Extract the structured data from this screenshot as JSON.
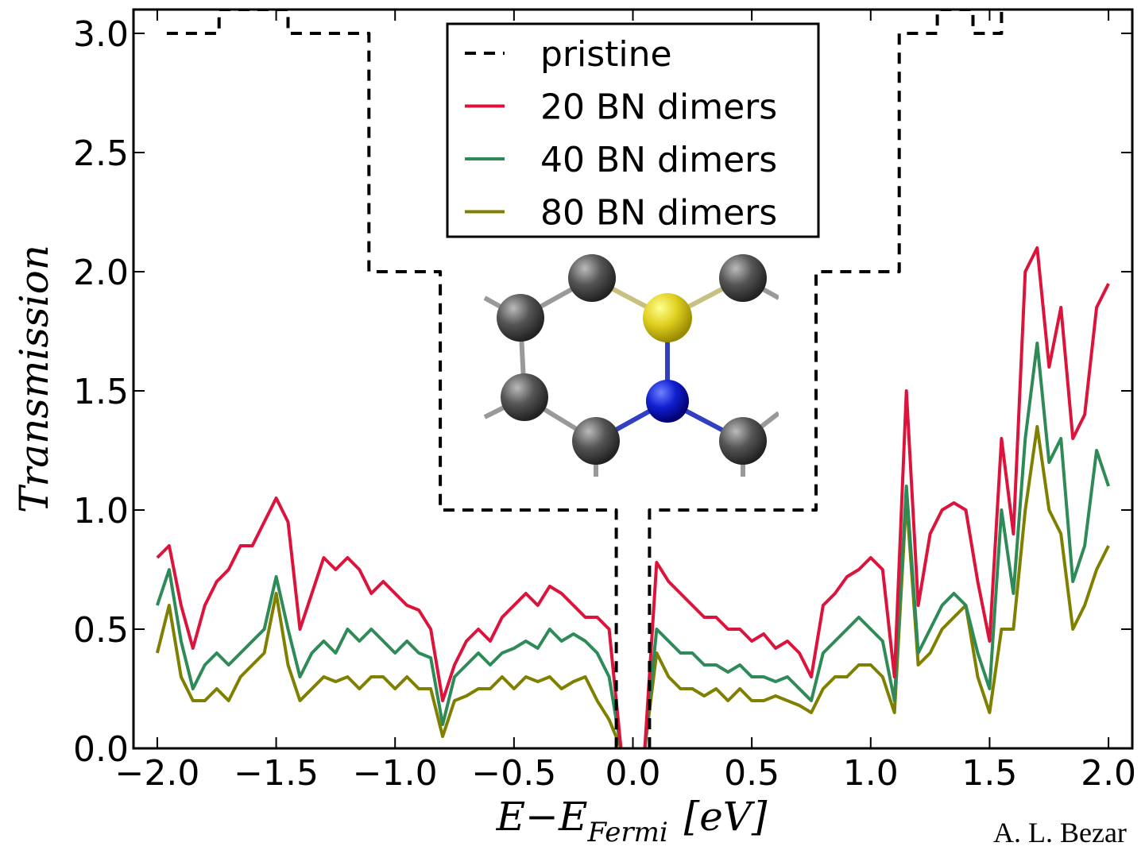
{
  "chart_data": {
    "type": "line",
    "ylabel": "Transmission",
    "xlabel": {
      "main": "E−E",
      "sub": "Fermi",
      "unit": "[eV]"
    },
    "credit": "A. L. Bezar",
    "xlim": [
      -2.1,
      2.1
    ],
    "ylim": [
      0,
      3.1
    ],
    "xticks": [
      {
        "value": -2.0,
        "label": "−2.0"
      },
      {
        "value": -1.5,
        "label": "−1.5"
      },
      {
        "value": -1.0,
        "label": "−1.0"
      },
      {
        "value": -0.5,
        "label": "−0.5"
      },
      {
        "value": 0,
        "label": "0.0"
      },
      0.5,
      {
        "value": 1.0,
        "label": "1.0"
      },
      1.5,
      {
        "value": 2.0,
        "label": "2.0"
      }
    ],
    "yticks": [
      {
        "value": 0,
        "label": "0.0"
      },
      0.5,
      {
        "value": 1.0,
        "label": "1.0"
      },
      1.5,
      {
        "value": 2.0,
        "label": "2.0"
      },
      2.5,
      {
        "value": 3.0,
        "label": "3.0"
      }
    ],
    "x": [
      -2.0,
      -1.95,
      -1.9,
      -1.85,
      -1.8,
      -1.75,
      -1.7,
      -1.65,
      -1.6,
      -1.55,
      -1.5,
      -1.45,
      -1.4,
      -1.35,
      -1.3,
      -1.25,
      -1.2,
      -1.15,
      -1.1,
      -1.05,
      -1.0,
      -0.95,
      -0.9,
      -0.85,
      -0.8,
      -0.75,
      -0.7,
      -0.65,
      -0.6,
      -0.55,
      -0.5,
      -0.45,
      -0.4,
      -0.35,
      -0.3,
      -0.25,
      -0.2,
      -0.15,
      -0.1,
      -0.05,
      0,
      0.05,
      0.1,
      0.15,
      0.2,
      0.25,
      0.3,
      0.35,
      0.4,
      0.45,
      0.5,
      0.55,
      0.6,
      0.65,
      0.7,
      0.75,
      0.8,
      0.85,
      0.9,
      0.95,
      1.0,
      1.05,
      1.1,
      1.15,
      1.2,
      1.25,
      1.3,
      1.35,
      1.4,
      1.45,
      1.5,
      1.55,
      1.6,
      1.65,
      1.7,
      1.75,
      1.8,
      1.85,
      1.9,
      1.95,
      2.0
    ],
    "series": [
      {
        "name": "pristine",
        "color": "#000000",
        "linestyle": "dashed",
        "x": [
          -1.96,
          -1.74,
          -1.74,
          -1.45,
          -1.45,
          -1.11,
          -1.11,
          -0.81,
          -0.81,
          -0.07,
          -0.07,
          0,
          0.07,
          0.07,
          0.77,
          0.77,
          1.12,
          1.12,
          1.28,
          1.28,
          1.43,
          1.43,
          1.55,
          1.55
        ],
        "values": [
          3.0,
          3.0,
          3.1,
          3.1,
          3.0,
          3.0,
          2.0,
          2.0,
          1.0,
          1.0,
          0.0,
          null,
          0.0,
          1.0,
          1.0,
          2.0,
          2.0,
          3.0,
          3.0,
          3.1,
          3.1,
          3.0,
          3.0,
          3.1
        ]
      },
      {
        "name": "20 BN dimers",
        "color": "#dc143c",
        "linestyle": "solid",
        "values": [
          0.8,
          0.85,
          0.6,
          0.42,
          0.6,
          0.7,
          0.75,
          0.85,
          0.85,
          0.95,
          1.05,
          0.95,
          0.5,
          0.65,
          0.8,
          0.75,
          0.8,
          0.75,
          0.65,
          0.7,
          0.65,
          0.6,
          0.58,
          0.5,
          0.2,
          0.35,
          0.45,
          0.5,
          0.45,
          0.55,
          0.6,
          0.65,
          0.6,
          0.68,
          0.65,
          0.6,
          0.55,
          0.55,
          0.5,
          0.0,
          null,
          0.0,
          0.78,
          0.7,
          0.65,
          0.6,
          0.55,
          0.55,
          0.5,
          0.5,
          0.45,
          0.48,
          0.42,
          0.45,
          0.4,
          0.3,
          0.6,
          0.65,
          0.72,
          0.75,
          0.8,
          0.75,
          0.3,
          1.5,
          0.6,
          0.9,
          1.0,
          1.03,
          1.0,
          0.7,
          0.45,
          1.3,
          0.9,
          2.0,
          2.1,
          1.6,
          1.85,
          1.3,
          1.4,
          1.85,
          1.95
        ]
      },
      {
        "name": "40 BN dimers",
        "color": "#2e8b57",
        "linestyle": "solid",
        "values": [
          0.6,
          0.75,
          0.45,
          0.25,
          0.35,
          0.4,
          0.35,
          0.4,
          0.45,
          0.5,
          0.72,
          0.5,
          0.3,
          0.4,
          0.45,
          0.4,
          0.5,
          0.45,
          0.5,
          0.45,
          0.4,
          0.45,
          0.4,
          0.38,
          0.1,
          0.3,
          0.35,
          0.4,
          0.35,
          0.4,
          0.42,
          0.45,
          0.42,
          0.5,
          0.45,
          0.48,
          0.45,
          0.4,
          0.3,
          0.0,
          null,
          0.0,
          0.5,
          0.45,
          0.4,
          0.4,
          0.35,
          0.35,
          0.32,
          0.35,
          0.3,
          0.3,
          0.28,
          0.3,
          0.25,
          0.2,
          0.4,
          0.45,
          0.5,
          0.55,
          0.5,
          0.45,
          0.2,
          1.1,
          0.4,
          0.5,
          0.6,
          0.65,
          0.6,
          0.4,
          0.25,
          1.0,
          0.65,
          1.3,
          1.7,
          1.2,
          1.3,
          0.7,
          0.85,
          1.25,
          1.1
        ]
      },
      {
        "name": "80 BN dimers",
        "color": "#808000",
        "linestyle": "solid",
        "values": [
          0.4,
          0.6,
          0.3,
          0.2,
          0.2,
          0.25,
          0.2,
          0.3,
          0.35,
          0.4,
          0.65,
          0.35,
          0.2,
          0.25,
          0.3,
          0.28,
          0.3,
          0.25,
          0.3,
          0.3,
          0.25,
          0.3,
          0.25,
          0.25,
          0.05,
          0.2,
          0.22,
          0.25,
          0.25,
          0.3,
          0.25,
          0.3,
          0.28,
          0.3,
          0.25,
          0.28,
          0.3,
          0.2,
          0.12,
          0.0,
          null,
          0.0,
          0.4,
          0.3,
          0.25,
          0.25,
          0.22,
          0.25,
          0.2,
          0.25,
          0.2,
          0.2,
          0.22,
          0.2,
          0.18,
          0.15,
          0.25,
          0.3,
          0.3,
          0.35,
          0.35,
          0.3,
          0.15,
          1.05,
          0.35,
          0.4,
          0.5,
          0.55,
          0.6,
          0.3,
          0.15,
          0.5,
          0.5,
          1.0,
          1.35,
          1.0,
          0.9,
          0.5,
          0.6,
          0.75,
          0.85
        ]
      }
    ]
  }
}
